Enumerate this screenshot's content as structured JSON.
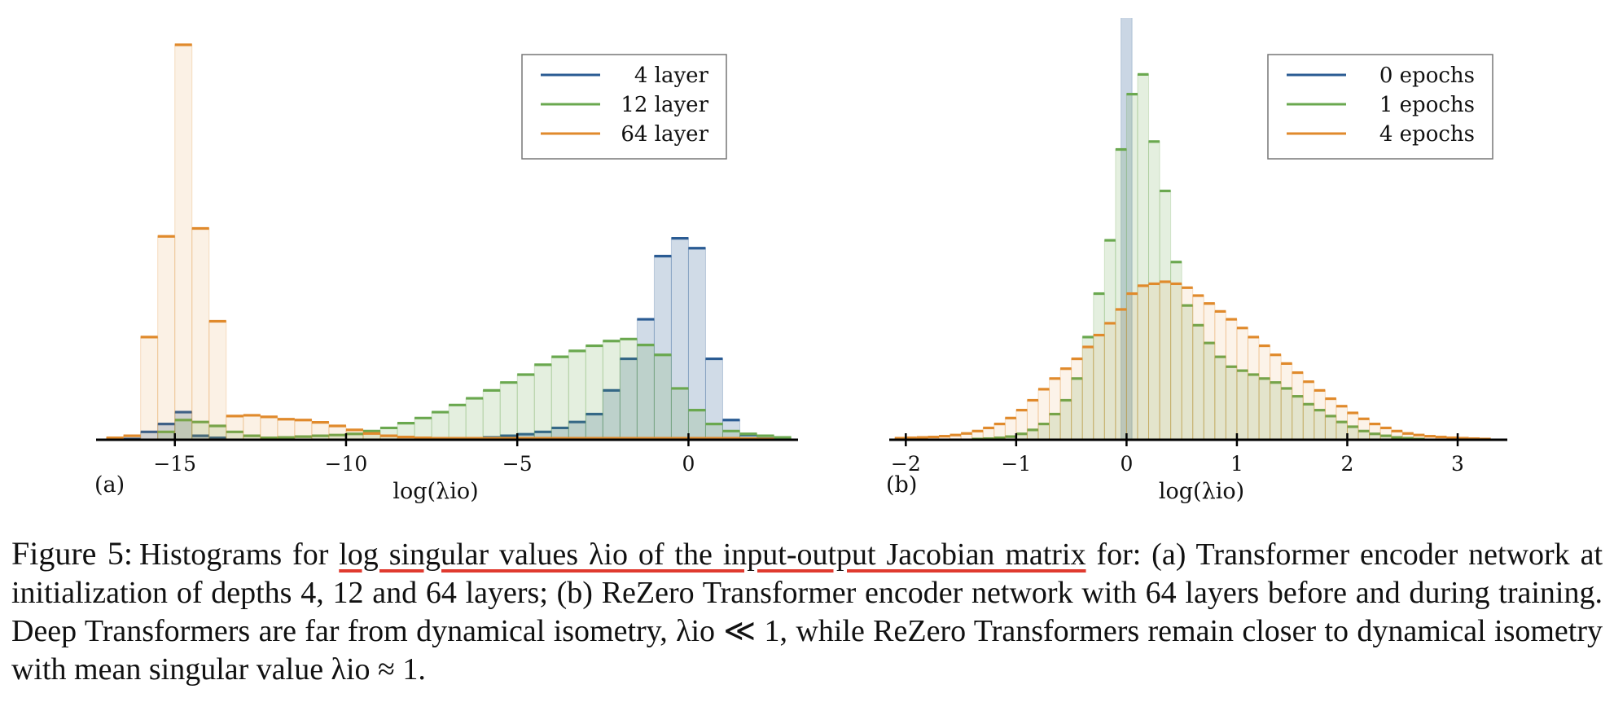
{
  "colors": {
    "layer4": "#2a5b93",
    "layer12": "#6aa84f",
    "layer64": "#e08a2c",
    "epoch0": "#2a5b93",
    "epoch1": "#6aa84f",
    "epoch4": "#e08a2c",
    "highlight_underline": "#e03a2f"
  },
  "chart_data": [
    {
      "type": "histogram",
      "panel_label": "(a)",
      "xlabel": "log(λio)",
      "ylabel": "",
      "xlim": [
        -17.3,
        3.2
      ],
      "ylim": [
        0,
        1.0
      ],
      "xticks": [
        -15,
        -10,
        -5,
        0
      ],
      "xtick_labels": [
        "−15",
        "−10",
        "−5",
        "0"
      ],
      "grid": false,
      "legend_position": "top-right",
      "bin_width": 0.5,
      "series": [
        {
          "name": "4 layer",
          "color_key": "layer4",
          "fill_opacity": 0.22,
          "bins": [
            [
              -16.5,
              0.002
            ],
            [
              -16,
              0.02
            ],
            [
              -15.5,
              0.04
            ],
            [
              -15,
              0.07
            ],
            [
              -14.5,
              0.01
            ],
            [
              -14,
              0.005
            ],
            [
              -7,
              0.002
            ],
            [
              -6.5,
              0.004
            ],
            [
              -6,
              0.006
            ],
            [
              -5.5,
              0.01
            ],
            [
              -5,
              0.014
            ],
            [
              -4.5,
              0.02
            ],
            [
              -4,
              0.03
            ],
            [
              -3.5,
              0.045
            ],
            [
              -3,
              0.065
            ],
            [
              -2.5,
              0.125
            ],
            [
              -2,
              0.205
            ],
            [
              -1.5,
              0.305
            ],
            [
              -1,
              0.465
            ],
            [
              -0.5,
              0.51
            ],
            [
              0,
              0.485
            ],
            [
              0.5,
              0.205
            ],
            [
              1,
              0.05
            ],
            [
              1.5,
              0.012
            ],
            [
              2,
              0.003
            ]
          ]
        },
        {
          "name": "12 layer",
          "color_key": "layer12",
          "fill_opacity": 0.18,
          "bins": [
            [
              -15.5,
              0.02
            ],
            [
              -15,
              0.05
            ],
            [
              -14.5,
              0.045
            ],
            [
              -14,
              0.035
            ],
            [
              -13.5,
              0.02
            ],
            [
              -13,
              0.01
            ],
            [
              -12.5,
              0.005
            ],
            [
              -12,
              0.006
            ],
            [
              -11.5,
              0.008
            ],
            [
              -11,
              0.01
            ],
            [
              -10.5,
              0.012
            ],
            [
              -10,
              0.015
            ],
            [
              -9.5,
              0.022
            ],
            [
              -9,
              0.03
            ],
            [
              -8.5,
              0.042
            ],
            [
              -8,
              0.055
            ],
            [
              -7.5,
              0.07
            ],
            [
              -7,
              0.088
            ],
            [
              -6.5,
              0.105
            ],
            [
              -6,
              0.125
            ],
            [
              -5.5,
              0.145
            ],
            [
              -5,
              0.165
            ],
            [
              -4.5,
              0.19
            ],
            [
              -4,
              0.21
            ],
            [
              -3.5,
              0.225
            ],
            [
              -3,
              0.238
            ],
            [
              -2.5,
              0.25
            ],
            [
              -2,
              0.255
            ],
            [
              -1.5,
              0.24
            ],
            [
              -1,
              0.215
            ],
            [
              -0.5,
              0.13
            ],
            [
              0,
              0.075
            ],
            [
              0.5,
              0.04
            ],
            [
              1,
              0.022
            ],
            [
              1.5,
              0.015
            ],
            [
              2,
              0.01
            ],
            [
              2.5,
              0.006
            ]
          ]
        },
        {
          "name": "64 layer",
          "color_key": "layer64",
          "fill_opacity": 0.12,
          "bins": [
            [
              -17,
              0.005
            ],
            [
              -16.5,
              0.01
            ],
            [
              -16,
              0.26
            ],
            [
              -15.5,
              0.515
            ],
            [
              -15,
              1.0
            ],
            [
              -14.5,
              0.535
            ],
            [
              -14,
              0.3
            ],
            [
              -13.5,
              0.06
            ],
            [
              -13,
              0.062
            ],
            [
              -12.5,
              0.058
            ],
            [
              -12,
              0.052
            ],
            [
              -11.5,
              0.05
            ],
            [
              -11,
              0.044
            ],
            [
              -10.5,
              0.035
            ],
            [
              -10,
              0.025
            ],
            [
              -9.5,
              0.016
            ],
            [
              -9,
              0.01
            ],
            [
              -8.5,
              0.007
            ],
            [
              -8,
              0.005
            ],
            [
              -7.5,
              0.004
            ],
            [
              -7,
              0.004
            ],
            [
              -6.5,
              0.004
            ],
            [
              -6,
              0.004
            ],
            [
              -5.5,
              0.004
            ],
            [
              -5,
              0.004
            ],
            [
              -4.5,
              0.004
            ],
            [
              -4,
              0.004
            ],
            [
              -3.5,
              0.004
            ],
            [
              -3,
              0.004
            ],
            [
              -2.5,
              0.004
            ],
            [
              -2,
              0.004
            ],
            [
              -1.5,
              0.004
            ],
            [
              -1,
              0.004
            ],
            [
              -0.5,
              0.004
            ],
            [
              0,
              0.004
            ],
            [
              0.5,
              0.004
            ],
            [
              1,
              0.004
            ],
            [
              1.5,
              0.003
            ],
            [
              2,
              0.002
            ]
          ]
        }
      ]
    },
    {
      "type": "histogram",
      "panel_label": "(b)",
      "xlabel": "log(λio)",
      "ylabel": "",
      "xlim": [
        -2.15,
        3.45
      ],
      "ylim": [
        0,
        1.0
      ],
      "xticks": [
        -2,
        -1,
        0,
        1,
        2,
        3
      ],
      "xtick_labels": [
        "−2",
        "−1",
        "0",
        "1",
        "2",
        "3"
      ],
      "grid": false,
      "legend_position": "top-right",
      "bin_width": 0.1,
      "series": [
        {
          "name": "0 epochs",
          "color_key": "epoch0",
          "fill_opacity": 0.25,
          "bins": [
            [
              -0.05,
              1.2
            ]
          ]
        },
        {
          "name": "1 epochs",
          "color_key": "epoch1",
          "fill_opacity": 0.18,
          "bins": [
            [
              -1.4,
              0.002
            ],
            [
              -1.3,
              0.003
            ],
            [
              -1.2,
              0.005
            ],
            [
              -1.1,
              0.008
            ],
            [
              -1.0,
              0.015
            ],
            [
              -0.9,
              0.025
            ],
            [
              -0.8,
              0.04
            ],
            [
              -0.7,
              0.065
            ],
            [
              -0.6,
              0.1
            ],
            [
              -0.5,
              0.155
            ],
            [
              -0.4,
              0.26
            ],
            [
              -0.3,
              0.37
            ],
            [
              -0.2,
              0.505
            ],
            [
              -0.1,
              0.735
            ],
            [
              0,
              0.875
            ],
            [
              0.1,
              0.925
            ],
            [
              0.2,
              0.755
            ],
            [
              0.3,
              0.63
            ],
            [
              0.4,
              0.45
            ],
            [
              0.5,
              0.34
            ],
            [
              0.6,
              0.29
            ],
            [
              0.7,
              0.245
            ],
            [
              0.8,
              0.21
            ],
            [
              0.9,
              0.185
            ],
            [
              1.0,
              0.175
            ],
            [
              1.1,
              0.165
            ],
            [
              1.2,
              0.155
            ],
            [
              1.3,
              0.145
            ],
            [
              1.4,
              0.13
            ],
            [
              1.5,
              0.11
            ],
            [
              1.6,
              0.09
            ],
            [
              1.7,
              0.075
            ],
            [
              1.8,
              0.06
            ],
            [
              1.9,
              0.045
            ],
            [
              2.0,
              0.033
            ],
            [
              2.1,
              0.022
            ],
            [
              2.2,
              0.015
            ],
            [
              2.3,
              0.01
            ],
            [
              2.4,
              0.006
            ],
            [
              2.5,
              0.004
            ],
            [
              2.6,
              0.002
            ]
          ]
        },
        {
          "name": "4 epochs",
          "color_key": "epoch4",
          "fill_opacity": 0.1,
          "bins": [
            [
              -2.1,
              0.004
            ],
            [
              -2.0,
              0.005
            ],
            [
              -1.9,
              0.006
            ],
            [
              -1.8,
              0.007
            ],
            [
              -1.7,
              0.009
            ],
            [
              -1.6,
              0.012
            ],
            [
              -1.5,
              0.016
            ],
            [
              -1.4,
              0.022
            ],
            [
              -1.3,
              0.03
            ],
            [
              -1.2,
              0.04
            ],
            [
              -1.1,
              0.055
            ],
            [
              -1.0,
              0.075
            ],
            [
              -0.9,
              0.1
            ],
            [
              -0.8,
              0.128
            ],
            [
              -0.7,
              0.155
            ],
            [
              -0.6,
              0.18
            ],
            [
              -0.5,
              0.205
            ],
            [
              -0.4,
              0.235
            ],
            [
              -0.3,
              0.265
            ],
            [
              -0.2,
              0.295
            ],
            [
              -0.1,
              0.33
            ],
            [
              0,
              0.37
            ],
            [
              0.1,
              0.39
            ],
            [
              0.2,
              0.395
            ],
            [
              0.3,
              0.4
            ],
            [
              0.4,
              0.395
            ],
            [
              0.5,
              0.385
            ],
            [
              0.6,
              0.365
            ],
            [
              0.7,
              0.345
            ],
            [
              0.8,
              0.325
            ],
            [
              0.9,
              0.305
            ],
            [
              1.0,
              0.283
            ],
            [
              1.1,
              0.26
            ],
            [
              1.2,
              0.238
            ],
            [
              1.3,
              0.215
            ],
            [
              1.4,
              0.193
            ],
            [
              1.5,
              0.17
            ],
            [
              1.6,
              0.147
            ],
            [
              1.7,
              0.125
            ],
            [
              1.8,
              0.104
            ],
            [
              1.9,
              0.085
            ],
            [
              2.0,
              0.068
            ],
            [
              2.1,
              0.053
            ],
            [
              2.2,
              0.04
            ],
            [
              2.3,
              0.03
            ],
            [
              2.4,
              0.022
            ],
            [
              2.5,
              0.016
            ],
            [
              2.6,
              0.012
            ],
            [
              2.7,
              0.009
            ],
            [
              2.8,
              0.007
            ],
            [
              2.9,
              0.005
            ],
            [
              3.0,
              0.004
            ],
            [
              3.1,
              0.003
            ],
            [
              3.2,
              0.002
            ]
          ]
        }
      ]
    }
  ],
  "caption": {
    "label": "Figure 5:",
    "text_before": "Histograms for ",
    "highlighted": "log singular values λio of the input-output Jacobian matrix",
    "text_after": " for: (a) Transformer encoder network at initialization of depths 4, 12 and 64 layers; (b) ReZero Transformer encoder network with 64 layers before and during training. Deep Transformers are far from dynamical isometry, λio ≪ 1, while ReZero Transformers remain closer to dynamical isometry with mean singular value λio ≈ 1."
  }
}
